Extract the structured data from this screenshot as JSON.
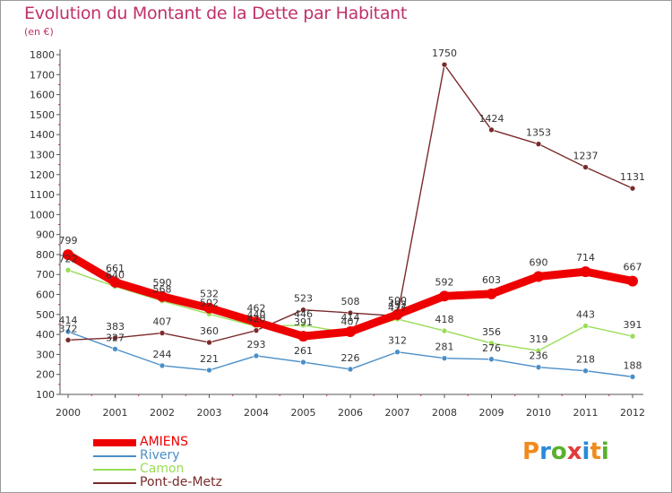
{
  "title": "Evolution du Montant de la Dette par Habitant",
  "subtitle": "(en €)",
  "logo": {
    "text": "Proxiti",
    "colors": [
      "#f08a1c",
      "#2a8ad8",
      "#58b12d",
      "#e23a3a",
      "#2a8ad8",
      "#f08a1c",
      "#58b12d"
    ]
  },
  "chart_data": {
    "type": "line",
    "x": [
      "2000",
      "2001",
      "2002",
      "2003",
      "2004",
      "2005",
      "2006",
      "2007",
      "2008",
      "2009",
      "2010",
      "2011",
      "2012"
    ],
    "ylim": [
      100,
      1800
    ],
    "yticks": [
      100,
      200,
      300,
      400,
      500,
      600,
      700,
      800,
      900,
      1000,
      1100,
      1200,
      1300,
      1400,
      1500,
      1600,
      1700,
      1800
    ],
    "grid": false,
    "legend_position": "bottom-left",
    "series": [
      {
        "name": "AMIENS",
        "color": "#ee0000",
        "values": [
          799,
          661,
          590,
          532,
          462,
          391,
          414,
          500,
          592,
          603,
          690,
          714,
          667
        ]
      },
      {
        "name": "Rivery",
        "color": "#4a8ec8",
        "values": [
          414,
          327,
          244,
          221,
          293,
          261,
          226,
          312,
          281,
          276,
          236,
          218,
          188
        ]
      },
      {
        "name": "Camon",
        "color": "#99dd55",
        "values": [
          722,
          640,
          568,
          502,
          440,
          446,
          407,
          477,
          418,
          356,
          319,
          443,
          391
        ]
      },
      {
        "name": "Pont-de-Metz",
        "color": "#7a2a2a",
        "values": [
          372,
          383,
          407,
          360,
          420,
          523,
          508,
          492,
          1750,
          1424,
          1353,
          1237,
          1131
        ]
      }
    ]
  }
}
